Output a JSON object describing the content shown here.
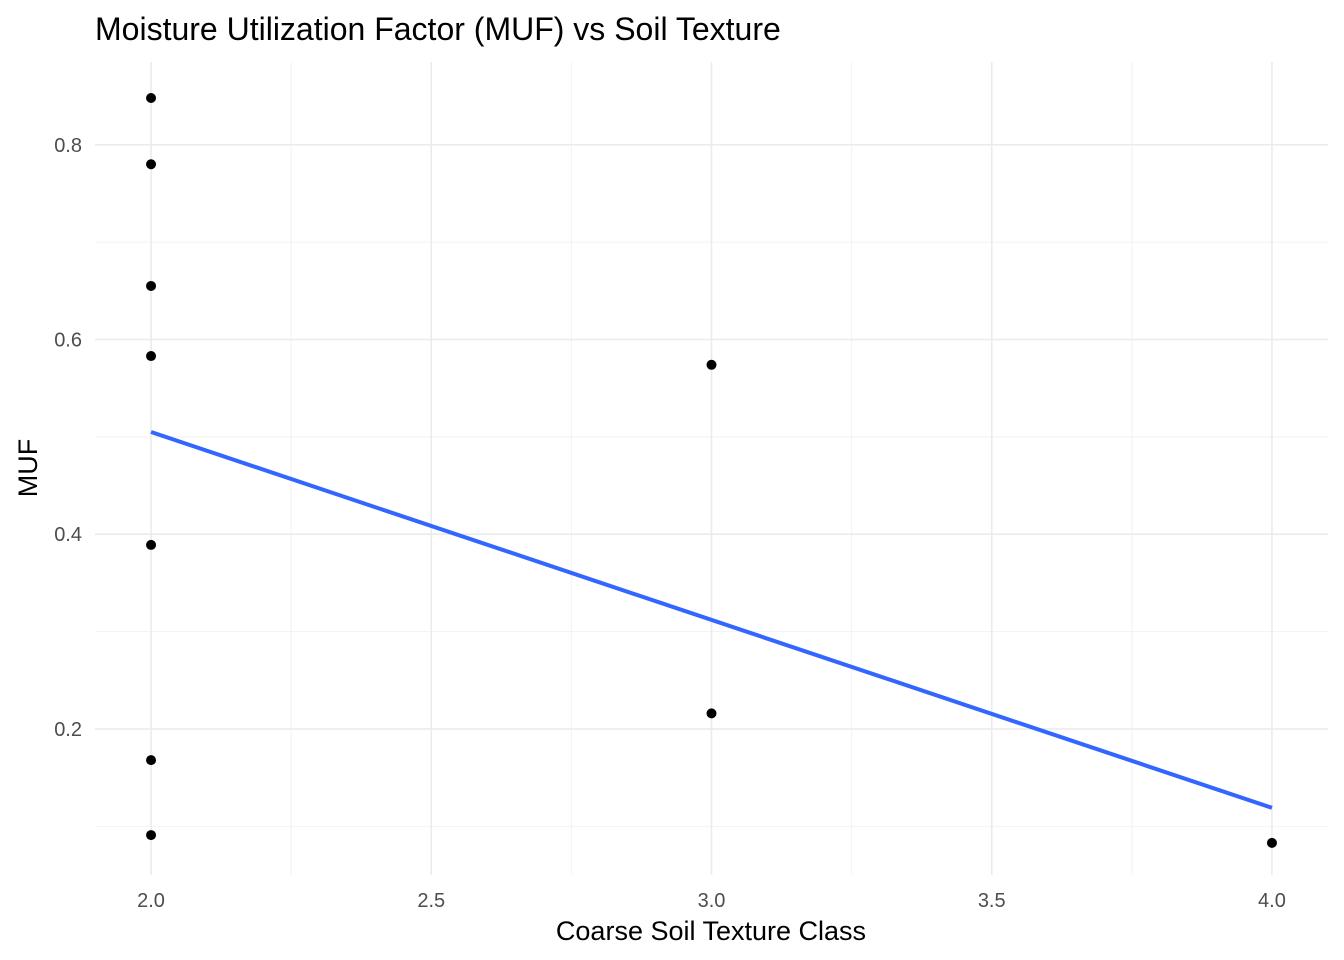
{
  "chart_data": {
    "type": "scatter",
    "title": "Moisture Utilization Factor (MUF) vs Soil Texture",
    "xlabel": "Coarse Soil Texture Class",
    "ylabel": "MUF",
    "xlim": [
      1.9,
      4.1
    ],
    "ylim": [
      0.05,
      0.885
    ],
    "x_ticks": [
      2.0,
      2.5,
      3.0,
      3.5,
      4.0
    ],
    "x_tick_labels": [
      "2.0",
      "2.5",
      "3.0",
      "3.5",
      "4.0"
    ],
    "y_ticks": [
      0.2,
      0.4,
      0.6,
      0.8
    ],
    "y_tick_labels": [
      "0.2",
      "0.4",
      "0.6",
      "0.8"
    ],
    "grid": true,
    "points": [
      {
        "x": 2,
        "y": 0.848
      },
      {
        "x": 2,
        "y": 0.78
      },
      {
        "x": 2,
        "y": 0.655
      },
      {
        "x": 2,
        "y": 0.583
      },
      {
        "x": 2,
        "y": 0.389
      },
      {
        "x": 2,
        "y": 0.168
      },
      {
        "x": 2,
        "y": 0.091
      },
      {
        "x": 3,
        "y": 0.574
      },
      {
        "x": 3,
        "y": 0.216
      },
      {
        "x": 4,
        "y": 0.083
      }
    ],
    "trend_line": {
      "method": "linear",
      "color": "#3366ff",
      "x": [
        2.0,
        4.0
      ],
      "y": [
        0.505,
        0.119
      ]
    }
  }
}
